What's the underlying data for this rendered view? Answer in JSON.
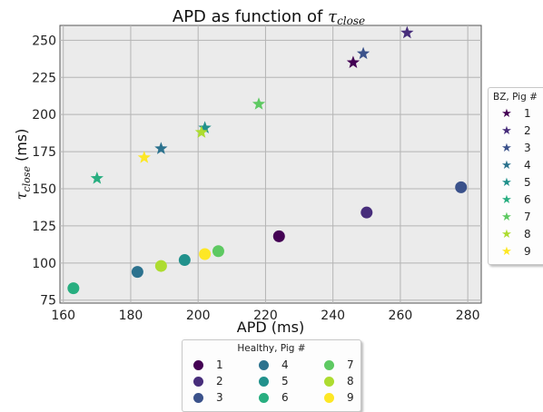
{
  "chart_data": {
    "type": "scatter",
    "title": "APD as function of ",
    "title_math": "τ",
    "title_math_sub": "close",
    "xlabel": "APD (ms)",
    "ylabel": "(ms)",
    "ylabel_math": "τ",
    "ylabel_math_sub": "close",
    "xlim": [
      159,
      284
    ],
    "ylim": [
      73,
      260
    ],
    "xticks": [
      "160",
      "180",
      "200",
      "220",
      "240",
      "260",
      "280"
    ],
    "xtick_values": [
      160,
      180,
      200,
      220,
      240,
      260,
      280
    ],
    "yticks": [
      "75",
      "100",
      "125",
      "150",
      "175",
      "200",
      "225",
      "250"
    ],
    "ytick_values": [
      75,
      100,
      125,
      150,
      175,
      200,
      225,
      250
    ],
    "grid": true,
    "pig_colors": [
      "#440154",
      "#472d7b",
      "#3b528b",
      "#2c728e",
      "#21918c",
      "#28ae80",
      "#5ec962",
      "#addc30",
      "#fde725"
    ],
    "series": [
      {
        "name": "BZ, Pig #",
        "marker": "star",
        "points": [
          {
            "pig": "1",
            "x": 246,
            "y": 235
          },
          {
            "pig": "2",
            "x": 262,
            "y": 255
          },
          {
            "pig": "3",
            "x": 249,
            "y": 241
          },
          {
            "pig": "4",
            "x": 189,
            "y": 177
          },
          {
            "pig": "5",
            "x": 202,
            "y": 191
          },
          {
            "pig": "6",
            "x": 170,
            "y": 157
          },
          {
            "pig": "7",
            "x": 218,
            "y": 207
          },
          {
            "pig": "8",
            "x": 201,
            "y": 188
          },
          {
            "pig": "9",
            "x": 184,
            "y": 171
          }
        ]
      },
      {
        "name": "Healthy, Pig #",
        "marker": "circle",
        "points": [
          {
            "pig": "1",
            "x": 224,
            "y": 118
          },
          {
            "pig": "2",
            "x": 250,
            "y": 134
          },
          {
            "pig": "3",
            "x": 278,
            "y": 151
          },
          {
            "pig": "4",
            "x": 182,
            "y": 94
          },
          {
            "pig": "5",
            "x": 196,
            "y": 102
          },
          {
            "pig": "6",
            "x": 163,
            "y": 83
          },
          {
            "pig": "7",
            "x": 206,
            "y": 108
          },
          {
            "pig": "8",
            "x": 189,
            "y": 98
          },
          {
            "pig": "9",
            "x": 202,
            "y": 106
          }
        ]
      }
    ],
    "legends": [
      {
        "title": "BZ, Pig #",
        "placement": "right",
        "entries": [
          "1",
          "2",
          "3",
          "4",
          "5",
          "6",
          "7",
          "8",
          "9"
        ]
      },
      {
        "title": "Healthy, Pig #",
        "placement": "bottom",
        "entries": [
          "1",
          "2",
          "3",
          "4",
          "5",
          "6",
          "7",
          "8",
          "9"
        ]
      }
    ]
  }
}
